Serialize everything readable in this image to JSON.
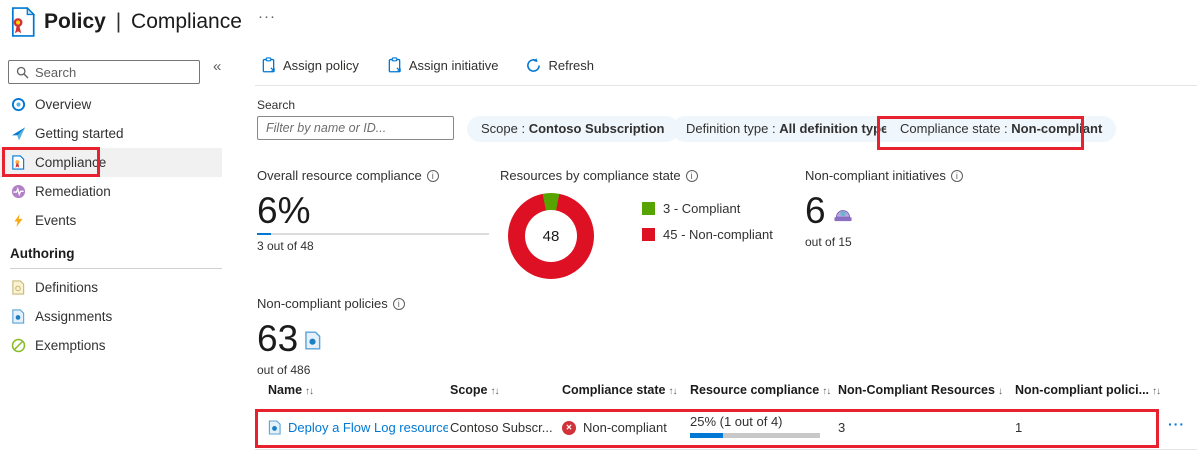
{
  "colors": {
    "accent_blue": "#0078d4",
    "compliant_green": "#57a300",
    "non_compliant_red": "#dd1123",
    "status_x_red": "#d13438",
    "annotation_red": "#e8212e",
    "pill_bg": "#eff6fc"
  },
  "header": {
    "title_primary": "Policy",
    "title_separator": "|",
    "title_secondary": "Compliance",
    "more": "···"
  },
  "sidebar": {
    "search_placeholder": "Search",
    "collapse_glyph": "«",
    "items": [
      {
        "label": "Overview"
      },
      {
        "label": "Getting started"
      },
      {
        "label": "Compliance",
        "selected": true
      },
      {
        "label": "Remediation"
      },
      {
        "label": "Events"
      }
    ],
    "section_title": "Authoring",
    "authoring_items": [
      {
        "label": "Definitions"
      },
      {
        "label": "Assignments"
      },
      {
        "label": "Exemptions"
      }
    ]
  },
  "toolbar": {
    "buttons": [
      {
        "label": "Assign policy"
      },
      {
        "label": "Assign initiative"
      },
      {
        "label": "Refresh"
      }
    ]
  },
  "filters": {
    "search_label": "Search",
    "search_placeholder": "Filter by name or ID...",
    "pills": [
      {
        "label": "Scope :",
        "value": "Contoso Subscription",
        "highlighted": false
      },
      {
        "label": "Definition type :",
        "value": "All definition types",
        "highlighted": false
      },
      {
        "label": "Compliance state :",
        "value": "Non-compliant",
        "highlighted": true
      }
    ]
  },
  "stats": {
    "overall": {
      "title": "Overall resource compliance",
      "value": "6%",
      "percent": 6,
      "subtext": "3 out of 48"
    },
    "resources": {
      "title": "Resources by compliance state"
    },
    "initiatives": {
      "title": "Non-compliant initiatives",
      "value": "6",
      "subtext": "out of 15"
    }
  },
  "policies_summary": {
    "title": "Non-compliant policies",
    "value": "63",
    "subtext": "out of 486"
  },
  "table": {
    "columns": [
      {
        "label": "Name",
        "sort": "↑↓"
      },
      {
        "label": "Scope",
        "sort": "↑↓"
      },
      {
        "label": "Compliance state",
        "sort": "↑↓"
      },
      {
        "label": "Resource compliance",
        "sort": "↑↓"
      },
      {
        "label": "Non-Compliant Resources",
        "sort": "↓"
      },
      {
        "label": "Non-compliant polici...",
        "sort": "↑↓"
      }
    ],
    "row": {
      "name": "Deploy a Flow Log resource w",
      "scope": "Contoso Subscr...",
      "compliance_state": "Non-compliant",
      "resource_compliance": "25% (1 out of 4)",
      "resource_compliance_percent": 25,
      "non_compliant_resources": "3",
      "non_compliant_policies": "1",
      "more": "···"
    }
  },
  "icons": {
    "info": "i",
    "status_x": "✕"
  },
  "chart_data": {
    "type": "donut",
    "title": "Resources by compliance state",
    "labels": [
      "3 - Compliant",
      "45 - Non-compliant"
    ],
    "values": [
      3,
      45
    ],
    "colors": [
      "#57a300",
      "#dd1123"
    ],
    "center_label": "48",
    "total": 48,
    "legend_position": "right"
  }
}
